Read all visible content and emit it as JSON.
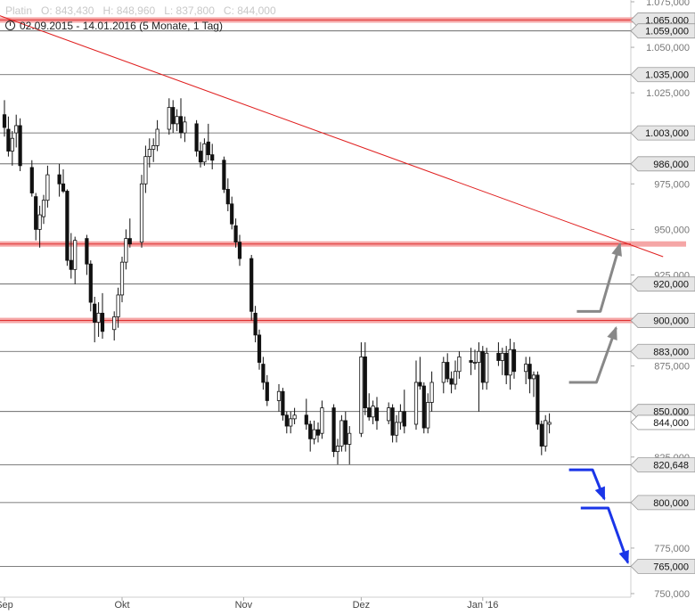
{
  "header": {
    "instrument": "Platin",
    "open": "O: 843,430",
    "high": "H: 848,960",
    "low": "L: 837,800",
    "close": "C: 844,000",
    "range": "02.09.2015 - 14.01.2016 (5 Monate, 1 Tag)"
  },
  "chart_data": {
    "type": "candlestick",
    "ylim": [
      750,
      1080
    ],
    "y_ticks": [
      {
        "value": 1075,
        "label": "1.075,000"
      },
      {
        "value": 1050,
        "label": "1.050,000"
      },
      {
        "value": 1025,
        "label": "1.025,000"
      },
      {
        "value": 975,
        "label": "975,000"
      },
      {
        "value": 950,
        "label": "950,000"
      },
      {
        "value": 925,
        "label": "925,000"
      },
      {
        "value": 875,
        "label": "875,000"
      },
      {
        "value": 825,
        "label": "825,000"
      },
      {
        "value": 775,
        "label": "775,000"
      },
      {
        "value": 750,
        "label": "750,000"
      }
    ],
    "x_labels": [
      {
        "day": 0,
        "label": "Sep"
      },
      {
        "day": 30,
        "label": "Okt"
      },
      {
        "day": 61,
        "label": "Nov"
      },
      {
        "day": 91,
        "label": "Dez"
      },
      {
        "day": 122,
        "label": "Jan '16"
      }
    ],
    "levels": [
      {
        "value": 1065,
        "label": "1.065,000",
        "style": "resistance"
      },
      {
        "value": 1059,
        "label": "1.059,000",
        "style": "plain"
      },
      {
        "value": 1035,
        "label": "1.035,000",
        "style": "plain"
      },
      {
        "value": 1003,
        "label": "1.003,000",
        "style": "plain"
      },
      {
        "value": 986,
        "label": "986,000",
        "style": "plain"
      },
      {
        "value": 942,
        "label": "",
        "style": "resistance"
      },
      {
        "value": 920,
        "label": "920,000",
        "style": "plain"
      },
      {
        "value": 900,
        "label": "900,000",
        "style": "resistance"
      },
      {
        "value": 883,
        "label": "883,000",
        "style": "plain"
      },
      {
        "value": 850,
        "label": "850,000",
        "style": "plain"
      },
      {
        "value": 844,
        "label": "844,000",
        "style": "current"
      },
      {
        "value": 820.648,
        "label": "820,648",
        "style": "plain"
      },
      {
        "value": 800,
        "label": "800,000",
        "style": "plain"
      },
      {
        "value": 765,
        "label": "765,000",
        "style": "plain"
      }
    ],
    "trendline": {
      "from": {
        "day": -2,
        "value": 1068
      },
      "to": {
        "day": 168,
        "value": 935
      }
    },
    "arrows": [
      {
        "color": "#888888",
        "points": [
          [
            144,
            866
          ],
          [
            151,
            866
          ],
          [
            156,
            896
          ]
        ]
      },
      {
        "color": "#888888",
        "points": [
          [
            146,
            905
          ],
          [
            152,
            905
          ],
          [
            157,
            942
          ]
        ]
      },
      {
        "color": "#1a35e8",
        "points": [
          [
            144,
            818
          ],
          [
            150,
            818
          ],
          [
            153,
            802
          ]
        ]
      },
      {
        "color": "#1a35e8",
        "points": [
          [
            147,
            797
          ],
          [
            154,
            797
          ],
          [
            159,
            767
          ]
        ]
      }
    ],
    "candles": [
      {
        "day": 0,
        "o": 1013,
        "h": 1021,
        "l": 1001,
        "c": 1006
      },
      {
        "day": 1,
        "o": 1005,
        "h": 1012,
        "l": 990,
        "c": 993
      },
      {
        "day": 2,
        "o": 993,
        "h": 1004,
        "l": 985,
        "c": 1000
      },
      {
        "day": 3,
        "o": 1003,
        "h": 1013,
        "l": 995,
        "c": 1007
      },
      {
        "day": 4,
        "o": 1007,
        "h": 1011,
        "l": 982,
        "c": 985
      },
      {
        "day": 7,
        "o": 984,
        "h": 988,
        "l": 968,
        "c": 970
      },
      {
        "day": 8,
        "o": 968,
        "h": 970,
        "l": 944,
        "c": 950
      },
      {
        "day": 9,
        "o": 950,
        "h": 963,
        "l": 940,
        "c": 958
      },
      {
        "day": 10,
        "o": 957,
        "h": 969,
        "l": 953,
        "c": 966
      },
      {
        "day": 11,
        "o": 966,
        "h": 985,
        "l": 962,
        "c": 980
      },
      {
        "day": 14,
        "o": 980,
        "h": 986,
        "l": 968,
        "c": 975
      },
      {
        "day": 15,
        "o": 975,
        "h": 983,
        "l": 970,
        "c": 971
      },
      {
        "day": 16,
        "o": 971,
        "h": 972,
        "l": 930,
        "c": 933
      },
      {
        "day": 17,
        "o": 933,
        "h": 948,
        "l": 923,
        "c": 928
      },
      {
        "day": 18,
        "o": 928,
        "h": 946,
        "l": 920,
        "c": 944
      },
      {
        "day": 21,
        "o": 945,
        "h": 947,
        "l": 925,
        "c": 931
      },
      {
        "day": 22,
        "o": 931,
        "h": 933,
        "l": 905,
        "c": 910
      },
      {
        "day": 23,
        "o": 909,
        "h": 913,
        "l": 888,
        "c": 899
      },
      {
        "day": 24,
        "o": 899,
        "h": 910,
        "l": 891,
        "c": 904
      },
      {
        "day": 25,
        "o": 904,
        "h": 915,
        "l": 890,
        "c": 894
      },
      {
        "day": 28,
        "o": 895,
        "h": 905,
        "l": 889,
        "c": 902
      },
      {
        "day": 29,
        "o": 902,
        "h": 918,
        "l": 896,
        "c": 914
      },
      {
        "day": 30,
        "o": 914,
        "h": 935,
        "l": 910,
        "c": 932
      },
      {
        "day": 31,
        "o": 932,
        "h": 950,
        "l": 928,
        "c": 945
      },
      {
        "day": 32,
        "o": 945,
        "h": 956,
        "l": 940,
        "c": 942
      },
      {
        "day": 35,
        "o": 943,
        "h": 980,
        "l": 940,
        "c": 975
      },
      {
        "day": 36,
        "o": 975,
        "h": 996,
        "l": 970,
        "c": 990
      },
      {
        "day": 37,
        "o": 990,
        "h": 1000,
        "l": 984,
        "c": 994
      },
      {
        "day": 38,
        "o": 994,
        "h": 1000,
        "l": 987,
        "c": 996
      },
      {
        "day": 39,
        "o": 996,
        "h": 1010,
        "l": 993,
        "c": 1005
      },
      {
        "day": 42,
        "o": 1005,
        "h": 1022,
        "l": 1002,
        "c": 1017
      },
      {
        "day": 43,
        "o": 1017,
        "h": 1021,
        "l": 1003,
        "c": 1008
      },
      {
        "day": 44,
        "o": 1008,
        "h": 1016,
        "l": 1004,
        "c": 1012
      },
      {
        "day": 45,
        "o": 1012,
        "h": 1022,
        "l": 1000,
        "c": 1003
      },
      {
        "day": 46,
        "o": 1003,
        "h": 1012,
        "l": 998,
        "c": 1009
      },
      {
        "day": 49,
        "o": 1008,
        "h": 1010,
        "l": 990,
        "c": 993
      },
      {
        "day": 50,
        "o": 993,
        "h": 998,
        "l": 984,
        "c": 987
      },
      {
        "day": 51,
        "o": 987,
        "h": 1000,
        "l": 985,
        "c": 997
      },
      {
        "day": 52,
        "o": 998,
        "h": 1008,
        "l": 988,
        "c": 991
      },
      {
        "day": 53,
        "o": 991,
        "h": 997,
        "l": 983,
        "c": 988
      },
      {
        "day": 56,
        "o": 988,
        "h": 990,
        "l": 970,
        "c": 972
      },
      {
        "day": 57,
        "o": 972,
        "h": 978,
        "l": 960,
        "c": 964
      },
      {
        "day": 58,
        "o": 964,
        "h": 968,
        "l": 950,
        "c": 953
      },
      {
        "day": 59,
        "o": 952,
        "h": 956,
        "l": 940,
        "c": 943
      },
      {
        "day": 60,
        "o": 943,
        "h": 947,
        "l": 930,
        "c": 934
      },
      {
        "day": 63,
        "o": 934,
        "h": 936,
        "l": 900,
        "c": 905
      },
      {
        "day": 64,
        "o": 904,
        "h": 908,
        "l": 888,
        "c": 892
      },
      {
        "day": 65,
        "o": 892,
        "h": 895,
        "l": 873,
        "c": 877
      },
      {
        "day": 66,
        "o": 876,
        "h": 880,
        "l": 862,
        "c": 866
      },
      {
        "day": 67,
        "o": 866,
        "h": 870,
        "l": 853,
        "c": 856
      },
      {
        "day": 70,
        "o": 856,
        "h": 865,
        "l": 850,
        "c": 861
      },
      {
        "day": 71,
        "o": 861,
        "h": 863,
        "l": 845,
        "c": 848
      },
      {
        "day": 72,
        "o": 848,
        "h": 850,
        "l": 838,
        "c": 842
      },
      {
        "day": 73,
        "o": 842,
        "h": 850,
        "l": 838,
        "c": 846
      },
      {
        "day": 74,
        "o": 846,
        "h": 852,
        "l": 843,
        "c": 848
      },
      {
        "day": 77,
        "o": 848,
        "h": 857,
        "l": 840,
        "c": 843
      },
      {
        "day": 78,
        "o": 843,
        "h": 845,
        "l": 828,
        "c": 835
      },
      {
        "day": 79,
        "o": 835,
        "h": 845,
        "l": 832,
        "c": 840
      },
      {
        "day": 80,
        "o": 840,
        "h": 844,
        "l": 833,
        "c": 837
      },
      {
        "day": 81,
        "o": 838,
        "h": 856,
        "l": 835,
        "c": 852
      },
      {
        "day": 84,
        "o": 852,
        "h": 854,
        "l": 825,
        "c": 828
      },
      {
        "day": 85,
        "o": 828,
        "h": 835,
        "l": 821,
        "c": 831
      },
      {
        "day": 86,
        "o": 831,
        "h": 848,
        "l": 828,
        "c": 845
      },
      {
        "day": 87,
        "o": 845,
        "h": 850,
        "l": 828,
        "c": 832
      },
      {
        "day": 88,
        "o": 832,
        "h": 842,
        "l": 821,
        "c": 838
      },
      {
        "day": 91,
        "o": 838,
        "h": 888,
        "l": 836,
        "c": 880
      },
      {
        "day": 92,
        "o": 880,
        "h": 888,
        "l": 848,
        "c": 852
      },
      {
        "day": 93,
        "o": 852,
        "h": 860,
        "l": 845,
        "c": 847
      },
      {
        "day": 94,
        "o": 847,
        "h": 856,
        "l": 843,
        "c": 853
      },
      {
        "day": 95,
        "o": 852,
        "h": 858,
        "l": 840,
        "c": 845
      },
      {
        "day": 98,
        "o": 845,
        "h": 855,
        "l": 843,
        "c": 852
      },
      {
        "day": 99,
        "o": 852,
        "h": 854,
        "l": 833,
        "c": 837
      },
      {
        "day": 100,
        "o": 837,
        "h": 848,
        "l": 833,
        "c": 844
      },
      {
        "day": 101,
        "o": 844,
        "h": 854,
        "l": 840,
        "c": 850
      },
      {
        "day": 102,
        "o": 850,
        "h": 862,
        "l": 838,
        "c": 842
      },
      {
        "day": 105,
        "o": 843,
        "h": 878,
        "l": 840,
        "c": 866
      },
      {
        "day": 106,
        "o": 866,
        "h": 880,
        "l": 862,
        "c": 864
      },
      {
        "day": 107,
        "o": 864,
        "h": 866,
        "l": 838,
        "c": 841
      },
      {
        "day": 108,
        "o": 841,
        "h": 860,
        "l": 838,
        "c": 855
      },
      {
        "day": 109,
        "o": 855,
        "h": 872,
        "l": 850,
        "c": 866
      },
      {
        "day": 112,
        "o": 866,
        "h": 880,
        "l": 860,
        "c": 877
      },
      {
        "day": 113,
        "o": 877,
        "h": 882,
        "l": 866,
        "c": 868
      },
      {
        "day": 114,
        "o": 868,
        "h": 872,
        "l": 860,
        "c": 865
      },
      {
        "day": 115,
        "o": 865,
        "h": 878,
        "l": 862,
        "c": 872
      },
      {
        "day": 116,
        "o": 872,
        "h": 883,
        "l": 868,
        "c": 880
      },
      {
        "day": 119,
        "o": 878,
        "h": 885,
        "l": 870,
        "c": 877
      },
      {
        "day": 120,
        "o": 877,
        "h": 884,
        "l": 873,
        "c": 877
      },
      {
        "day": 121,
        "o": 877,
        "h": 888,
        "l": 850,
        "c": 883
      },
      {
        "day": 122,
        "o": 883,
        "h": 886,
        "l": 862,
        "c": 866
      },
      {
        "day": 123,
        "o": 866,
        "h": 885,
        "l": 862,
        "c": 882
      },
      {
        "day": 126,
        "o": 882,
        "h": 888,
        "l": 875,
        "c": 878
      },
      {
        "day": 127,
        "o": 878,
        "h": 885,
        "l": 870,
        "c": 882
      },
      {
        "day": 128,
        "o": 882,
        "h": 886,
        "l": 865,
        "c": 870
      },
      {
        "day": 129,
        "o": 870,
        "h": 890,
        "l": 862,
        "c": 884
      },
      {
        "day": 130,
        "o": 884,
        "h": 888,
        "l": 868,
        "c": 872
      },
      {
        "day": 133,
        "o": 872,
        "h": 880,
        "l": 865,
        "c": 876
      },
      {
        "day": 134,
        "o": 876,
        "h": 880,
        "l": 860,
        "c": 868
      },
      {
        "day": 135,
        "o": 868,
        "h": 872,
        "l": 858,
        "c": 870
      },
      {
        "day": 136,
        "o": 870,
        "h": 872,
        "l": 840,
        "c": 843
      },
      {
        "day": 137,
        "o": 843,
        "h": 845,
        "l": 826,
        "c": 831
      },
      {
        "day": 138,
        "o": 831,
        "h": 848,
        "l": 828,
        "c": 845
      },
      {
        "day": 139,
        "o": 843,
        "h": 849,
        "l": 838,
        "c": 844
      }
    ]
  }
}
